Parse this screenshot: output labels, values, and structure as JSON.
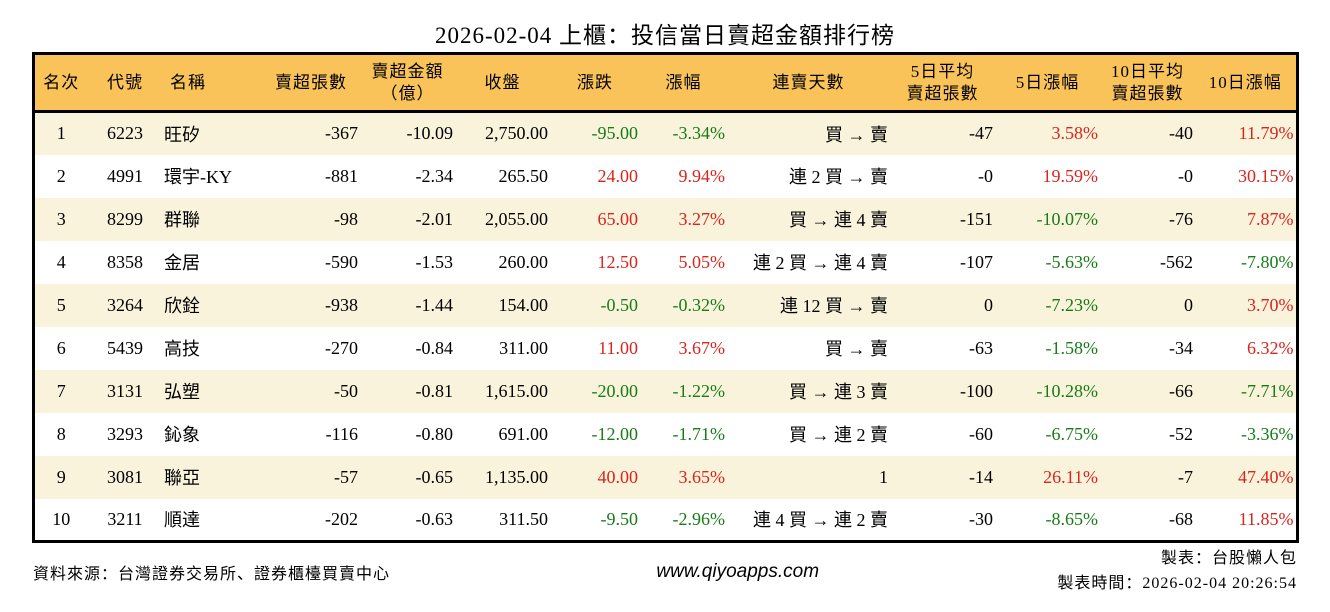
{
  "title": "2026-02-04 上櫃：投信當日賣超金額排行榜",
  "colors": {
    "up": "#d8251e",
    "down": "#177c17",
    "header_bg": "#f9c35a",
    "row_alt_bg": "#faf3dc",
    "border": "#000000"
  },
  "chart_data": {
    "type": "table",
    "title": "2026-02-04 上櫃：投信當日賣超金額排行榜",
    "columns": [
      {
        "key": "rank",
        "label": "名次"
      },
      {
        "key": "code",
        "label": "代號"
      },
      {
        "key": "name",
        "label": "名稱"
      },
      {
        "key": "net_sell_lots",
        "label": "賣超張數"
      },
      {
        "key": "net_sell_amount",
        "label": "賣超金額（億）",
        "label_lines": [
          "賣超金額",
          "（億）"
        ]
      },
      {
        "key": "close",
        "label": "收盤"
      },
      {
        "key": "change",
        "label": "漲跌"
      },
      {
        "key": "change_pct",
        "label": "漲幅"
      },
      {
        "key": "streak",
        "label": "連賣天數"
      },
      {
        "key": "avg5",
        "label": "5日平均賣超張數",
        "label_lines": [
          "5日平均",
          "賣超張數"
        ]
      },
      {
        "key": "pct5",
        "label": "5日漲幅"
      },
      {
        "key": "avg10",
        "label": "10日平均賣超張數",
        "label_lines": [
          "10日平均",
          "賣超張數"
        ]
      },
      {
        "key": "pct10",
        "label": "10日漲幅"
      }
    ],
    "rows": [
      {
        "rank": "1",
        "code": "6223",
        "name": "旺矽",
        "net_sell_lots": "-367",
        "net_sell_amount": "-10.09",
        "close": "2,750.00",
        "change": "-95.00",
        "change_pct": "-3.34%",
        "streak": "買 → 賣",
        "avg5": "-47",
        "pct5": "3.58%",
        "avg10": "-40",
        "pct10": "11.79%"
      },
      {
        "rank": "2",
        "code": "4991",
        "name": "環宇-KY",
        "net_sell_lots": "-881",
        "net_sell_amount": "-2.34",
        "close": "265.50",
        "change": "24.00",
        "change_pct": "9.94%",
        "streak": "連 2 買 → 賣",
        "avg5": "-0",
        "pct5": "19.59%",
        "avg10": "-0",
        "pct10": "30.15%"
      },
      {
        "rank": "3",
        "code": "8299",
        "name": "群聯",
        "net_sell_lots": "-98",
        "net_sell_amount": "-2.01",
        "close": "2,055.00",
        "change": "65.00",
        "change_pct": "3.27%",
        "streak": "買 → 連 4 賣",
        "avg5": "-151",
        "pct5": "-10.07%",
        "avg10": "-76",
        "pct10": "7.87%"
      },
      {
        "rank": "4",
        "code": "8358",
        "name": "金居",
        "net_sell_lots": "-590",
        "net_sell_amount": "-1.53",
        "close": "260.00",
        "change": "12.50",
        "change_pct": "5.05%",
        "streak": "連 2 買 → 連 4 賣",
        "avg5": "-107",
        "pct5": "-5.63%",
        "avg10": "-562",
        "pct10": "-7.80%"
      },
      {
        "rank": "5",
        "code": "3264",
        "name": "欣銓",
        "net_sell_lots": "-938",
        "net_sell_amount": "-1.44",
        "close": "154.00",
        "change": "-0.50",
        "change_pct": "-0.32%",
        "streak": "連 12 買 → 賣",
        "avg5": "0",
        "pct5": "-7.23%",
        "avg10": "0",
        "pct10": "3.70%"
      },
      {
        "rank": "6",
        "code": "5439",
        "name": "高技",
        "net_sell_lots": "-270",
        "net_sell_amount": "-0.84",
        "close": "311.00",
        "change": "11.00",
        "change_pct": "3.67%",
        "streak": "買 → 賣",
        "avg5": "-63",
        "pct5": "-1.58%",
        "avg10": "-34",
        "pct10": "6.32%"
      },
      {
        "rank": "7",
        "code": "3131",
        "name": "弘塑",
        "net_sell_lots": "-50",
        "net_sell_amount": "-0.81",
        "close": "1,615.00",
        "change": "-20.00",
        "change_pct": "-1.22%",
        "streak": "買 → 連 3 賣",
        "avg5": "-100",
        "pct5": "-10.28%",
        "avg10": "-66",
        "pct10": "-7.71%"
      },
      {
        "rank": "8",
        "code": "3293",
        "name": "鈊象",
        "net_sell_lots": "-116",
        "net_sell_amount": "-0.80",
        "close": "691.00",
        "change": "-12.00",
        "change_pct": "-1.71%",
        "streak": "買 → 連 2 賣",
        "avg5": "-60",
        "pct5": "-6.75%",
        "avg10": "-52",
        "pct10": "-3.36%"
      },
      {
        "rank": "9",
        "code": "3081",
        "name": "聯亞",
        "net_sell_lots": "-57",
        "net_sell_amount": "-0.65",
        "close": "1,135.00",
        "change": "40.00",
        "change_pct": "3.65%",
        "streak": "1",
        "avg5": "-14",
        "pct5": "26.11%",
        "avg10": "-7",
        "pct10": "47.40%"
      },
      {
        "rank": "10",
        "code": "3211",
        "name": "順達",
        "net_sell_lots": "-202",
        "net_sell_amount": "-0.63",
        "close": "311.50",
        "change": "-9.50",
        "change_pct": "-2.96%",
        "streak": "連 4 買 → 連 2 賣",
        "avg5": "-30",
        "pct5": "-8.65%",
        "avg10": "-68",
        "pct10": "11.85%"
      }
    ]
  },
  "footer": {
    "source": "資料來源：台灣證券交易所、證券櫃檯買賣中心",
    "website": "www.qiyoapps.com",
    "maker": "製表：台股懶人包",
    "made_at": "製表時間：2026-02-04 20:26:54"
  }
}
